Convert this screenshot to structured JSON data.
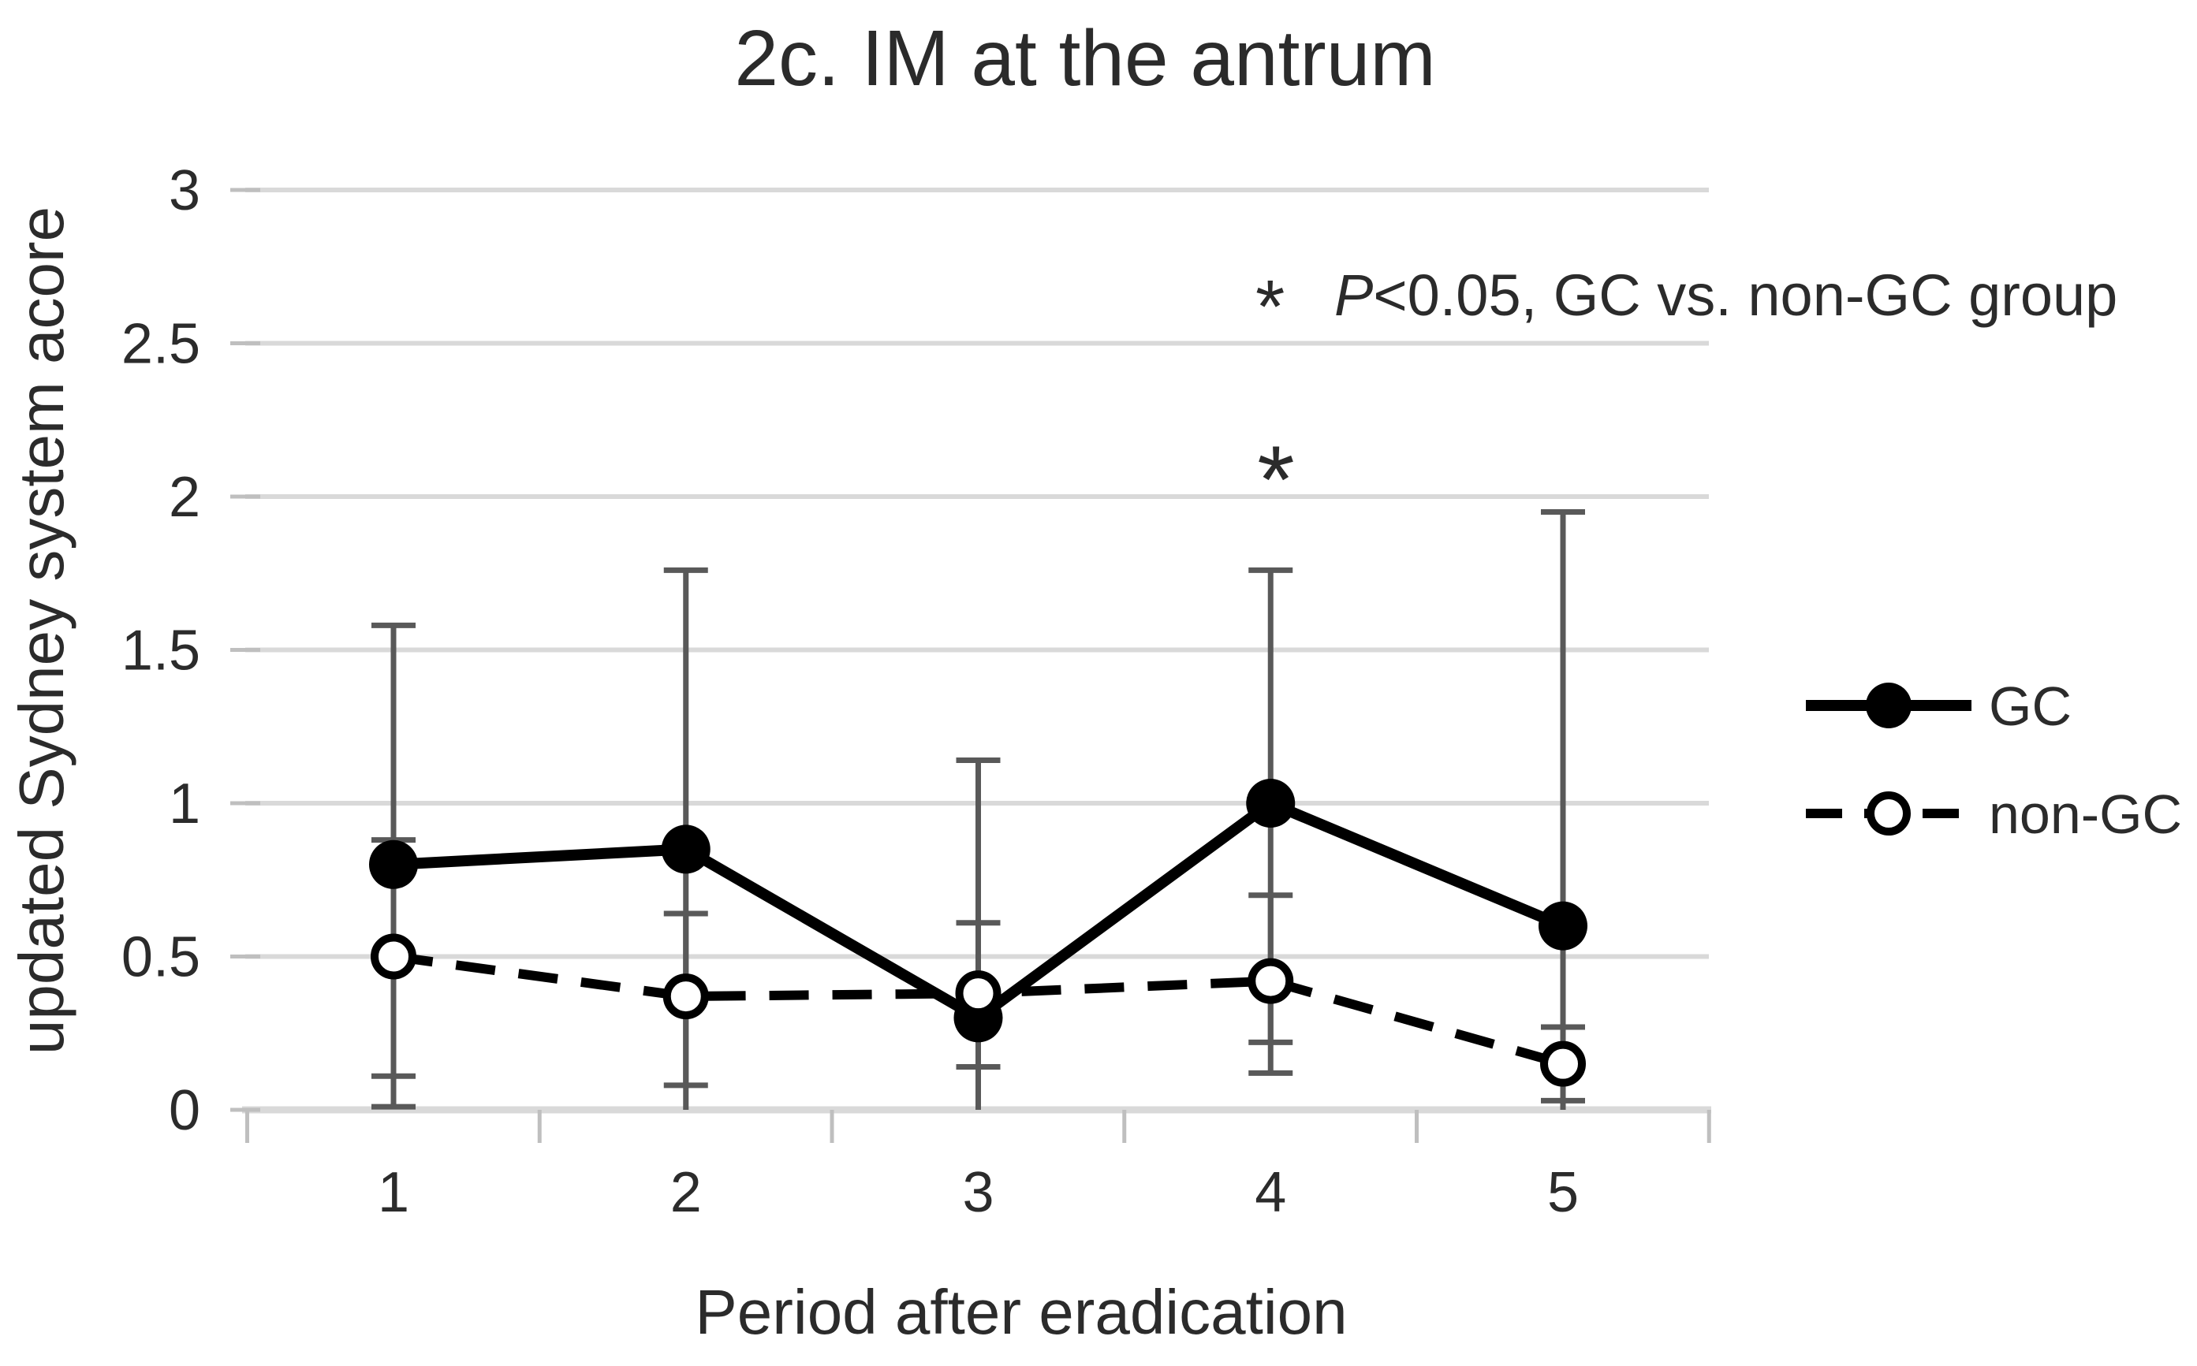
{
  "colors": {
    "background": "#ffffff",
    "grid": "#d9d9d9",
    "axis": "#d9d9d9",
    "tick": "#bfbfbf",
    "error_bar": "#595959",
    "series": "#000000",
    "text": "#2b2b2b"
  },
  "chart_data": {
    "type": "line",
    "title": "2c. IM at the antrum",
    "xlabel": "Period after eradication",
    "ylabel": "updated Sydney system acore",
    "x": [
      1,
      2,
      3,
      4,
      5
    ],
    "ylim": [
      0,
      3
    ],
    "yticks": [
      0,
      0.5,
      1,
      1.5,
      2,
      2.5,
      3
    ],
    "grid": true,
    "legend_position": "right",
    "series": [
      {
        "name": "GC",
        "line": "solid",
        "marker": "filled-circle",
        "values": [
          0.8,
          0.85,
          0.3,
          1.0,
          0.6
        ],
        "err_hi": [
          1.58,
          1.76,
          1.14,
          1.76,
          1.95
        ],
        "err_lo": [
          0.01,
          0,
          0,
          0.22,
          0
        ],
        "cap_lo": [
          true,
          false,
          false,
          true,
          false
        ]
      },
      {
        "name": "non-GC",
        "line": "dashed",
        "marker": "open-circle",
        "values": [
          0.5,
          0.37,
          0.38,
          0.42,
          0.15
        ],
        "err_hi": [
          0.88,
          0.64,
          0.61,
          0.7,
          0.27
        ],
        "err_lo": [
          0.11,
          0.08,
          0.14,
          0.12,
          0.03
        ],
        "cap_lo": [
          true,
          true,
          true,
          true,
          true
        ]
      }
    ],
    "significance_marker": {
      "symbol": "*",
      "x": 4
    },
    "annotation": {
      "star": "*",
      "p": "P",
      "rest": "<0.05, GC vs. non-GC group"
    }
  }
}
